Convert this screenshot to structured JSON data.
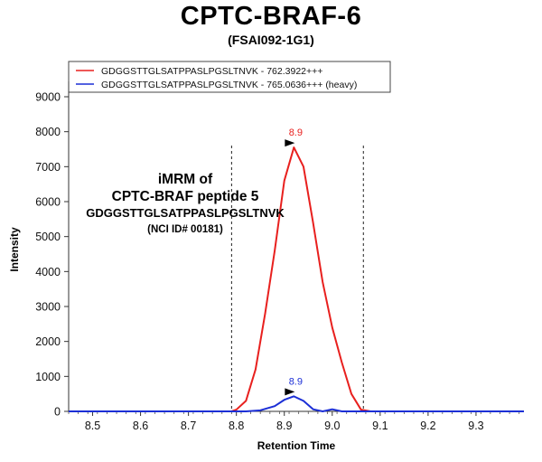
{
  "chart_data": {
    "type": "line",
    "title": "CPTC-BRAF-6",
    "subtitle": "(FSAI092-1G1)",
    "xlabel": "Retention Time",
    "ylabel": "Intensity",
    "xlim": [
      8.45,
      9.4
    ],
    "ylim": [
      0,
      9000
    ],
    "x_ticks": [
      "8.5",
      "8.6",
      "8.7",
      "8.8",
      "8.9",
      "9.0",
      "9.1",
      "9.2",
      "9.3"
    ],
    "x_tick_values": [
      8.5,
      8.6,
      8.7,
      8.8,
      8.9,
      9.0,
      9.1,
      9.2,
      9.3
    ],
    "y_ticks": [
      "0",
      "1000",
      "2000",
      "3000",
      "4000",
      "5000",
      "6000",
      "7000",
      "8000",
      "9000"
    ],
    "y_tick_values": [
      0,
      1000,
      2000,
      3000,
      4000,
      5000,
      6000,
      7000,
      8000,
      9000
    ],
    "grid": false,
    "legend_position": "top",
    "integration_bounds": [
      8.79,
      9.065
    ],
    "annotation_lines": [
      "iMRM of",
      "CPTC-BRAF peptide 5",
      "GDGGSTTGLSATPPASLPGSLTNVK",
      "(NCI ID# 00181)"
    ],
    "series": [
      {
        "name": "GDGGSTTGLSATPPASLPGSLTNVK - 762.3922+++",
        "color": "#e8201e",
        "x": [
          8.45,
          8.79,
          8.8,
          8.82,
          8.84,
          8.86,
          8.88,
          8.9,
          8.92,
          8.94,
          8.96,
          8.98,
          9.0,
          9.02,
          9.04,
          9.06,
          9.08,
          9.4
        ],
        "y": [
          0,
          0,
          50,
          300,
          1200,
          2800,
          4600,
          6600,
          7550,
          7000,
          5400,
          3700,
          2400,
          1400,
          500,
          50,
          0,
          0
        ],
        "peak_label": "8.9",
        "peak_x": 8.92,
        "peak_y": 7550
      },
      {
        "name": "GDGGSTTGLSATPPASLPGSLTNVK - 765.0636+++ (heavy)",
        "color": "#1c2fd6",
        "x": [
          8.45,
          8.82,
          8.85,
          8.88,
          8.9,
          8.92,
          8.94,
          8.96,
          8.98,
          9.0,
          9.02,
          9.04,
          9.4
        ],
        "y": [
          0,
          0,
          30,
          150,
          330,
          430,
          300,
          60,
          0,
          60,
          0,
          0,
          0
        ],
        "peak_label": "8.9",
        "peak_x": 8.92,
        "peak_y": 430
      }
    ]
  }
}
